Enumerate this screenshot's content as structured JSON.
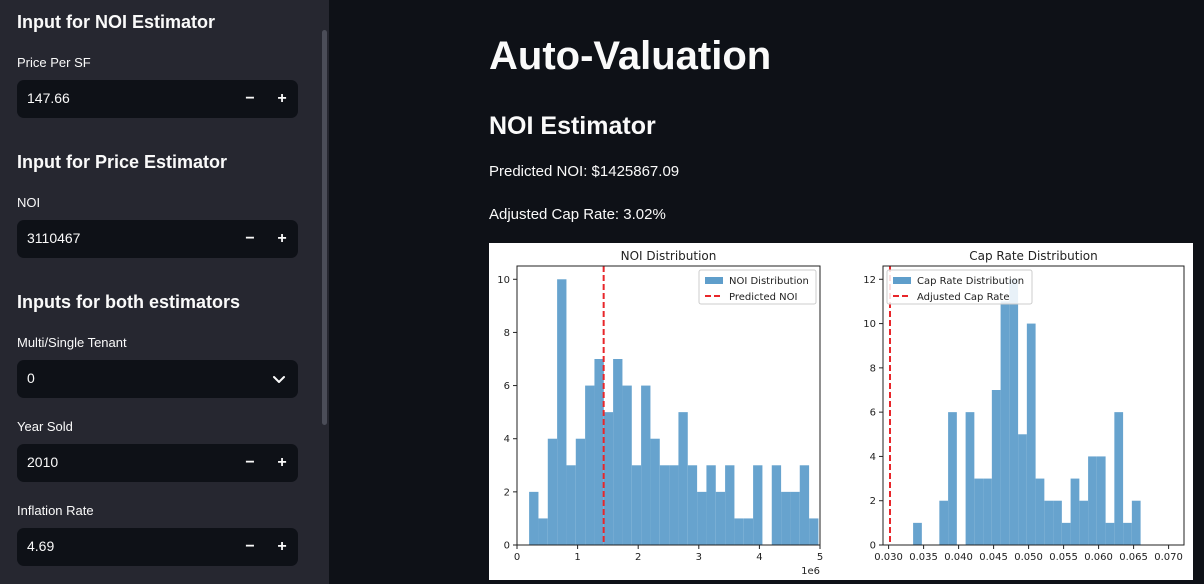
{
  "sidebar": {
    "noi_section_title": "Input for NOI Estimator",
    "price_per_sf": {
      "label": "Price Per SF",
      "value": "147.66"
    },
    "price_section_title": "Input for Price Estimator",
    "noi": {
      "label": "NOI",
      "value": "3110467"
    },
    "both_section_title": "Inputs for both estimators",
    "tenant": {
      "label": "Multi/Single Tenant",
      "value": "0"
    },
    "year_sold": {
      "label": "Year Sold",
      "value": "2010"
    },
    "inflation": {
      "label": "Inflation Rate",
      "value": "4.69"
    },
    "minus_symbol": "−",
    "plus_symbol": "+"
  },
  "main": {
    "title": "Auto-Valuation",
    "subtitle": "NOI Estimator",
    "predicted_noi": "Predicted NOI: $1425867.09",
    "adjusted_cap_rate": "Adjusted Cap Rate: 3.02%"
  },
  "colors": {
    "bar": "#5f9ecb",
    "ref_line": "#e8262a"
  },
  "chart_data": [
    {
      "type": "bar",
      "title": "NOI Distribution",
      "xlabel": "",
      "ylabel": "",
      "x_offset_label": "1e6",
      "xlim": [
        0,
        5
      ],
      "ylim": [
        0,
        10.5
      ],
      "xticks": [
        0,
        1,
        2,
        3,
        4,
        5
      ],
      "yticks": [
        0,
        2,
        4,
        6,
        8,
        10
      ],
      "bin_start": 0.2,
      "bin_width": 0.154,
      "values": [
        2,
        1,
        4,
        10,
        3,
        4,
        6,
        7,
        5,
        7,
        6,
        3,
        6,
        4,
        3,
        3,
        5,
        3,
        2,
        3,
        2,
        3,
        1,
        1,
        3,
        0,
        3,
        2,
        2,
        3,
        1
      ],
      "reference_line": 1.43,
      "legend": [
        "NOI Distribution",
        "Predicted NOI"
      ],
      "legend_position": "top-right"
    },
    {
      "type": "bar",
      "title": "Cap Rate Distribution",
      "xlabel": "",
      "ylabel": "",
      "xlim": [
        0.0292,
        0.0722
      ],
      "ylim": [
        0,
        12.6
      ],
      "xticks": [
        0.03,
        0.035,
        0.04,
        0.045,
        0.05,
        0.055,
        0.06,
        0.065,
        0.07
      ],
      "yticks": [
        0,
        2,
        4,
        6,
        8,
        10,
        12
      ],
      "bin_start": 0.0335,
      "bin_width": 0.00125,
      "values": [
        1,
        0,
        0,
        2,
        6,
        0,
        6,
        3,
        3,
        7,
        11,
        12,
        5,
        10,
        3,
        2,
        2,
        1,
        3,
        2,
        4,
        4,
        1,
        6,
        1,
        2
      ],
      "reference_line": 0.0302,
      "legend": [
        "Cap Rate Distribution",
        "Adjusted Cap Rate"
      ],
      "legend_position": "top-left"
    }
  ]
}
